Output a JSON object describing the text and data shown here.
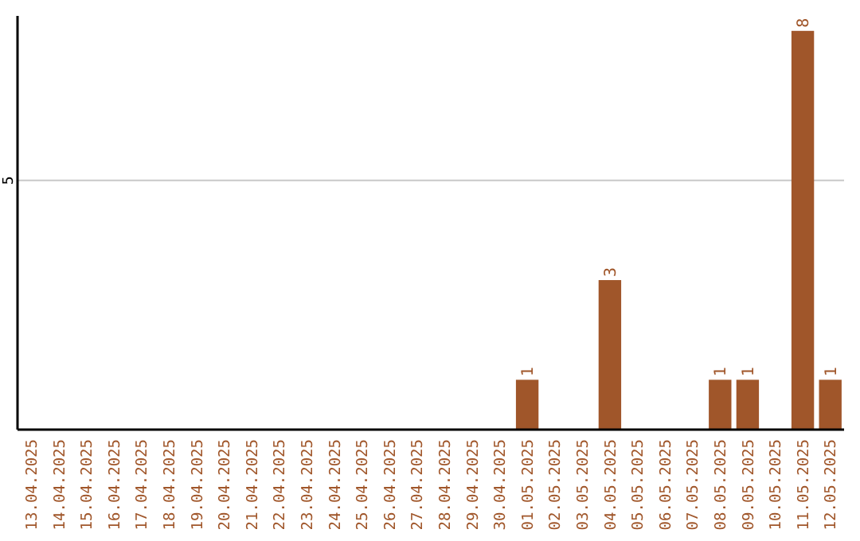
{
  "chart_data": {
    "type": "bar",
    "categories": [
      "13.04.2025",
      "14.04.2025",
      "15.04.2025",
      "16.04.2025",
      "17.04.2025",
      "18.04.2025",
      "19.04.2025",
      "20.04.2025",
      "21.04.2025",
      "22.04.2025",
      "23.04.2025",
      "24.04.2025",
      "25.04.2025",
      "26.04.2025",
      "27.04.2025",
      "28.04.2025",
      "29.04.2025",
      "30.04.2025",
      "01.05.2025",
      "02.05.2025",
      "03.05.2025",
      "04.05.2025",
      "05.05.2025",
      "06.05.2025",
      "07.05.2025",
      "08.05.2025",
      "09.05.2025",
      "10.05.2025",
      "11.05.2025",
      "12.05.2025"
    ],
    "values": [
      null,
      null,
      null,
      null,
      null,
      null,
      null,
      null,
      null,
      null,
      null,
      null,
      null,
      null,
      null,
      null,
      null,
      null,
      1,
      null,
      null,
      3,
      null,
      null,
      null,
      1,
      1,
      null,
      8,
      1
    ],
    "data_labels": true,
    "color": "#a0562a",
    "ylim": [
      0,
      8.3
    ],
    "yticks": [
      5
    ],
    "grid": "y"
  }
}
